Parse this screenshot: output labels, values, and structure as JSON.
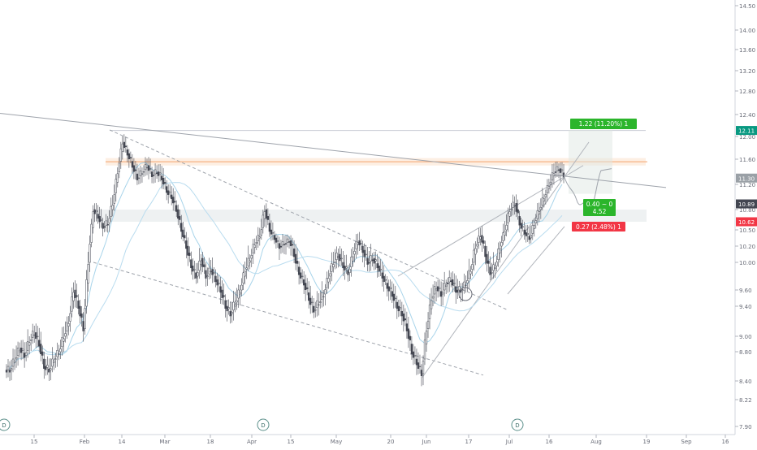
{
  "chart_data": {
    "type": "candlestick",
    "price_axis": {
      "ticks": [
        "14.50",
        "14.00",
        "13.60",
        "13.20",
        "12.80",
        "12.40",
        "12.00",
        "11.60",
        "11.20",
        "10.80",
        "10.50",
        "10.20",
        "10.00",
        "9.60",
        "9.40",
        "9.00",
        "8.80",
        "8.40",
        "8.22",
        "7.90"
      ],
      "tick_values": [
        14.5,
        14.0,
        13.6,
        13.2,
        12.8,
        12.4,
        12.0,
        11.6,
        11.2,
        10.8,
        10.5,
        10.2,
        10.0,
        9.6,
        9.4,
        9.0,
        8.8,
        8.4,
        8.22,
        7.9
      ],
      "range": [
        7.85,
        14.6
      ]
    },
    "time_axis": {
      "ticks": [
        "15",
        "Feb",
        "14",
        "Mar",
        "18",
        "Apr",
        "15",
        "May",
        "20",
        "Jun",
        "17",
        "Jul",
        "16",
        "Aug",
        "19",
        "Sep",
        "16"
      ]
    },
    "price_labels": [
      {
        "text": "12.11",
        "value": 12.11,
        "color": "#089981"
      },
      {
        "text": "11.30",
        "value": 11.3,
        "color": "#9aa0a6"
      },
      {
        "text": "10.89",
        "value": 10.89,
        "color": "#434651"
      },
      {
        "text": "10.62",
        "value": 10.62,
        "color": "#f23645"
      }
    ],
    "annotations": {
      "target": "1.22 (11.20%) 1",
      "risk_reward": [
        "0.40 ~ 0",
        "4.52"
      ],
      "stop": "0.27 (2.48%) 1"
    },
    "event_markers": [
      "D",
      "D",
      "D"
    ],
    "close_series": [
      8.55,
      8.7,
      8.85,
      8.75,
      8.95,
      9.05,
      8.9,
      8.6,
      8.55,
      8.7,
      8.8,
      9.0,
      9.2,
      9.6,
      9.4,
      9.1,
      10.0,
      10.8,
      10.7,
      10.55,
      10.6,
      10.9,
      11.4,
      11.9,
      11.7,
      11.5,
      11.3,
      11.4,
      11.5,
      11.35,
      11.4,
      11.3,
      11.1,
      11.0,
      10.8,
      10.5,
      10.2,
      9.95,
      9.8,
      10.05,
      9.8,
      9.9,
      9.75,
      9.6,
      9.4,
      9.3,
      9.45,
      9.6,
      9.9,
      10.05,
      10.25,
      10.4,
      10.8,
      10.5,
      10.35,
      10.2,
      10.25,
      10.3,
      10.1,
      9.85,
      9.7,
      9.5,
      9.35,
      9.45,
      9.55,
      9.8,
      10.0,
      10.1,
      9.95,
      9.85,
      10.1,
      10.3,
      10.15,
      10.0,
      10.05,
      9.95,
      9.8,
      9.65,
      9.55,
      9.4,
      9.3,
      9.1,
      8.8,
      8.65,
      8.5,
      9.1,
      9.5,
      9.65,
      9.55,
      9.7,
      9.75,
      9.6,
      9.6,
      9.7,
      9.9,
      10.2,
      10.4,
      10.1,
      9.85,
      9.95,
      10.2,
      10.5,
      10.8,
      10.9,
      10.6,
      10.45,
      10.35,
      10.6,
      10.8,
      11.0,
      11.2,
      11.4,
      11.45,
      11.35
    ],
    "moving_averages": [
      "fast",
      "slow"
    ]
  }
}
